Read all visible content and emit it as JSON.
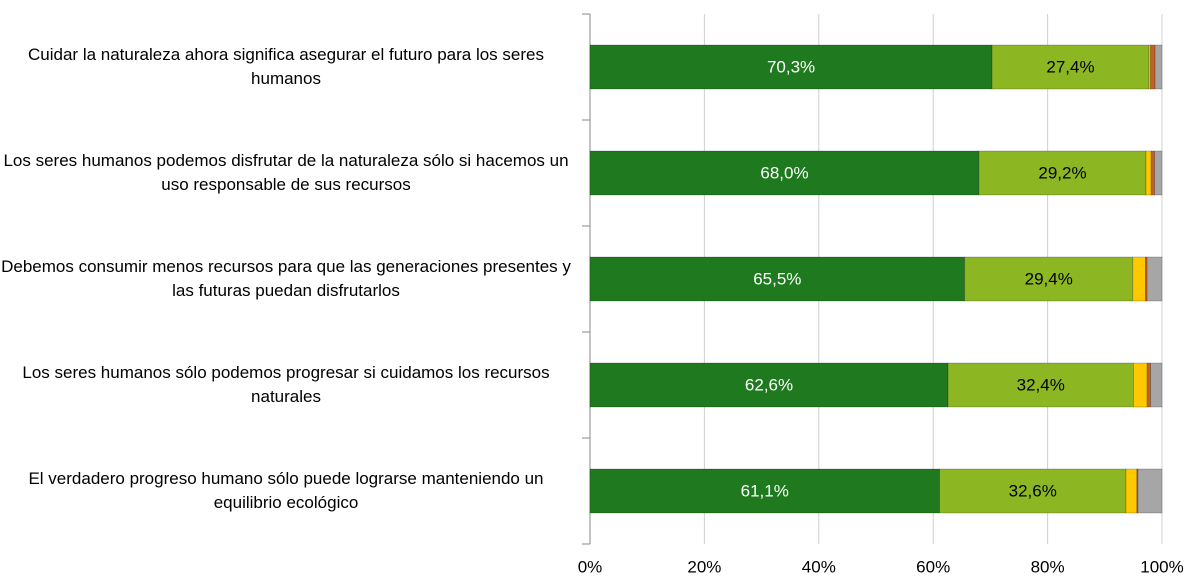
{
  "chart_data": {
    "type": "stacked-barh",
    "categories": [
      "Cuidar la naturaleza ahora significa asegurar el futuro para los seres humanos",
      "Los seres humanos podemos disfrutar de la naturaleza sólo si hacemos un uso responsable de sus recursos",
      "Debemos consumir menos recursos para que las generaciones presentes y las futuras puedan disfrutarlos",
      "Los seres humanos sólo podemos progresar si cuidamos los recursos naturales",
      "El verdadero progreso humano sólo puede lograrse manteniendo un equilibrio ecológico"
    ],
    "series": [
      {
        "color": "#1f7a1f",
        "values": [
          70.3,
          68.0,
          65.5,
          62.6,
          61.1
        ],
        "value_labels": [
          "70,3%",
          "68,0%",
          "65,5%",
          "62,6%",
          "61,1%"
        ]
      },
      {
        "color": "#8cb723",
        "values": [
          27.4,
          29.2,
          29.4,
          32.4,
          32.6
        ],
        "value_labels": [
          "27,4%",
          "29,2%",
          "29,4%",
          "32,4%",
          "32,6%"
        ]
      },
      {
        "color": "#ffc800",
        "values": [
          0.3,
          0.9,
          2.2,
          2.4,
          1.9
        ]
      },
      {
        "color": "#c0602a",
        "values": [
          0.8,
          0.6,
          0.3,
          0.6,
          0.2
        ]
      },
      {
        "color": "#a6a6a6",
        "values": [
          1.2,
          1.3,
          2.6,
          2.0,
          4.2
        ]
      }
    ],
    "xlim": [
      0,
      100
    ],
    "xticks": [
      {
        "value": 0,
        "label": "0%"
      },
      {
        "value": 20,
        "label": "20%"
      },
      {
        "value": 40,
        "label": "40%"
      },
      {
        "value": 60,
        "label": "60%"
      },
      {
        "value": 80,
        "label": "80%"
      },
      {
        "value": 100,
        "label": "100%"
      }
    ],
    "grid": true
  }
}
